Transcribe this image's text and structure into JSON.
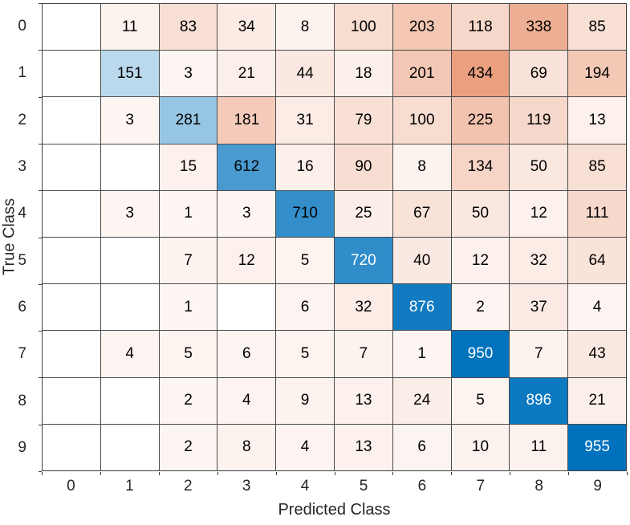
{
  "figure": {
    "kind": "confusion-matrix"
  },
  "colors": {
    "diagonal_base": "#0072BD",
    "off_diagonal_base": "#D95319",
    "empty_cell": "#ffffff",
    "grid_line": "#4a4a4a",
    "axis_border": "#3d3d3d",
    "label_text": "#262626",
    "cell_text_dark": "#000000",
    "cell_text_light": "#ffffff",
    "background": "#ffffff"
  },
  "chart_data": {
    "type": "heatmap",
    "subtype": "confusion-matrix",
    "xlabel": "Predicted Class",
    "ylabel": "True Class",
    "row_labels": [
      "0",
      "1",
      "2",
      "3",
      "4",
      "5",
      "6",
      "7",
      "8",
      "9"
    ],
    "col_labels": [
      "0",
      "1",
      "2",
      "3",
      "4",
      "5",
      "6",
      "7",
      "8",
      "9"
    ],
    "max_value": 955,
    "white_text_ratio_threshold": 0.75,
    "matrix": [
      [
        null,
        11,
        83,
        34,
        8,
        100,
        203,
        118,
        338,
        85
      ],
      [
        null,
        151,
        3,
        21,
        44,
        18,
        201,
        434,
        69,
        194
      ],
      [
        null,
        3,
        281,
        181,
        31,
        79,
        100,
        225,
        119,
        13
      ],
      [
        null,
        null,
        15,
        612,
        16,
        90,
        8,
        134,
        50,
        85
      ],
      [
        null,
        3,
        1,
        3,
        710,
        25,
        67,
        50,
        12,
        111
      ],
      [
        null,
        null,
        7,
        12,
        5,
        720,
        40,
        12,
        32,
        64
      ],
      [
        null,
        null,
        1,
        null,
        6,
        32,
        876,
        2,
        37,
        4
      ],
      [
        null,
        4,
        5,
        6,
        5,
        7,
        1,
        950,
        7,
        43
      ],
      [
        null,
        null,
        2,
        4,
        9,
        13,
        24,
        5,
        896,
        21
      ],
      [
        null,
        null,
        2,
        8,
        4,
        13,
        6,
        10,
        11,
        955
      ]
    ],
    "legend": null,
    "grid": "on"
  }
}
